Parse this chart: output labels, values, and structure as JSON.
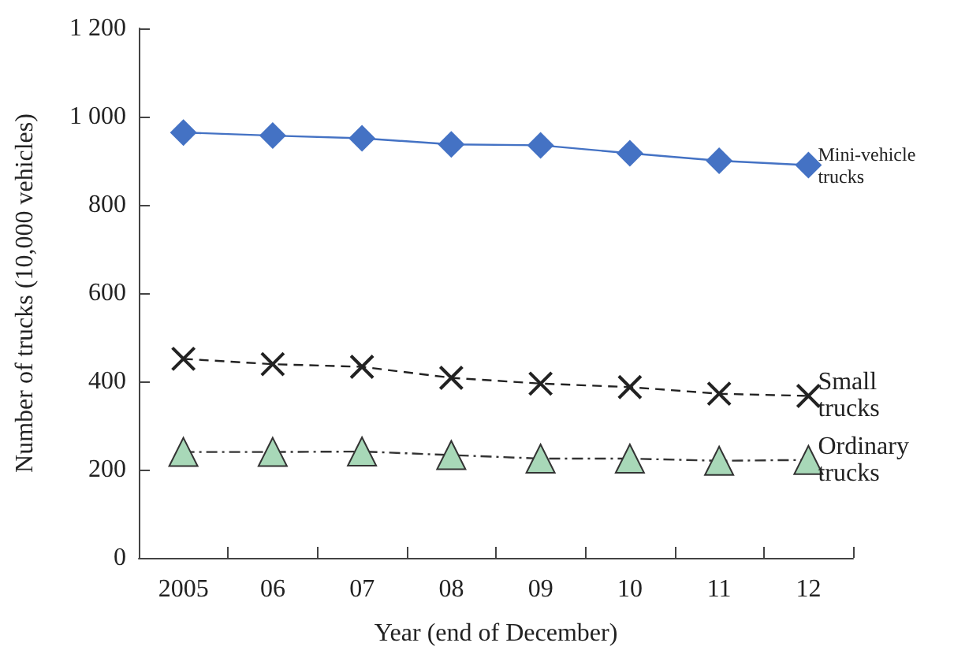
{
  "chart_data": {
    "type": "line",
    "categories": [
      "2005",
      "06",
      "07",
      "08",
      "09",
      "10",
      "11",
      "12"
    ],
    "series": [
      {
        "name": "Mini-vehicle trucks",
        "color": "#4472c4",
        "marker": "diamond",
        "line_style": "solid",
        "values": [
          964,
          957,
          951,
          937,
          935,
          917,
          900,
          890
        ]
      },
      {
        "name": "Small trucks",
        "color": "#222222",
        "marker": "cross",
        "line_style": "dashed",
        "values": [
          451,
          439,
          433,
          408,
          395,
          387,
          372,
          367
        ]
      },
      {
        "name": "Ordinary trucks",
        "color": "#a8d8b8",
        "marker": "triangle",
        "line_style": "dashdot",
        "values": [
          240,
          240,
          241,
          233,
          225,
          225,
          220,
          222
        ]
      }
    ],
    "xlabel": "Year (end of December)",
    "ylabel": "Number of trucks (10,000 vehicles)",
    "ylim": [
      0,
      1200
    ],
    "yticks": [
      0,
      200,
      400,
      600,
      800,
      {
        "value": 1000,
        "label": "1 000"
      },
      {
        "value": 1200,
        "label": "1 200"
      }
    ],
    "grid": false,
    "legend": false
  }
}
